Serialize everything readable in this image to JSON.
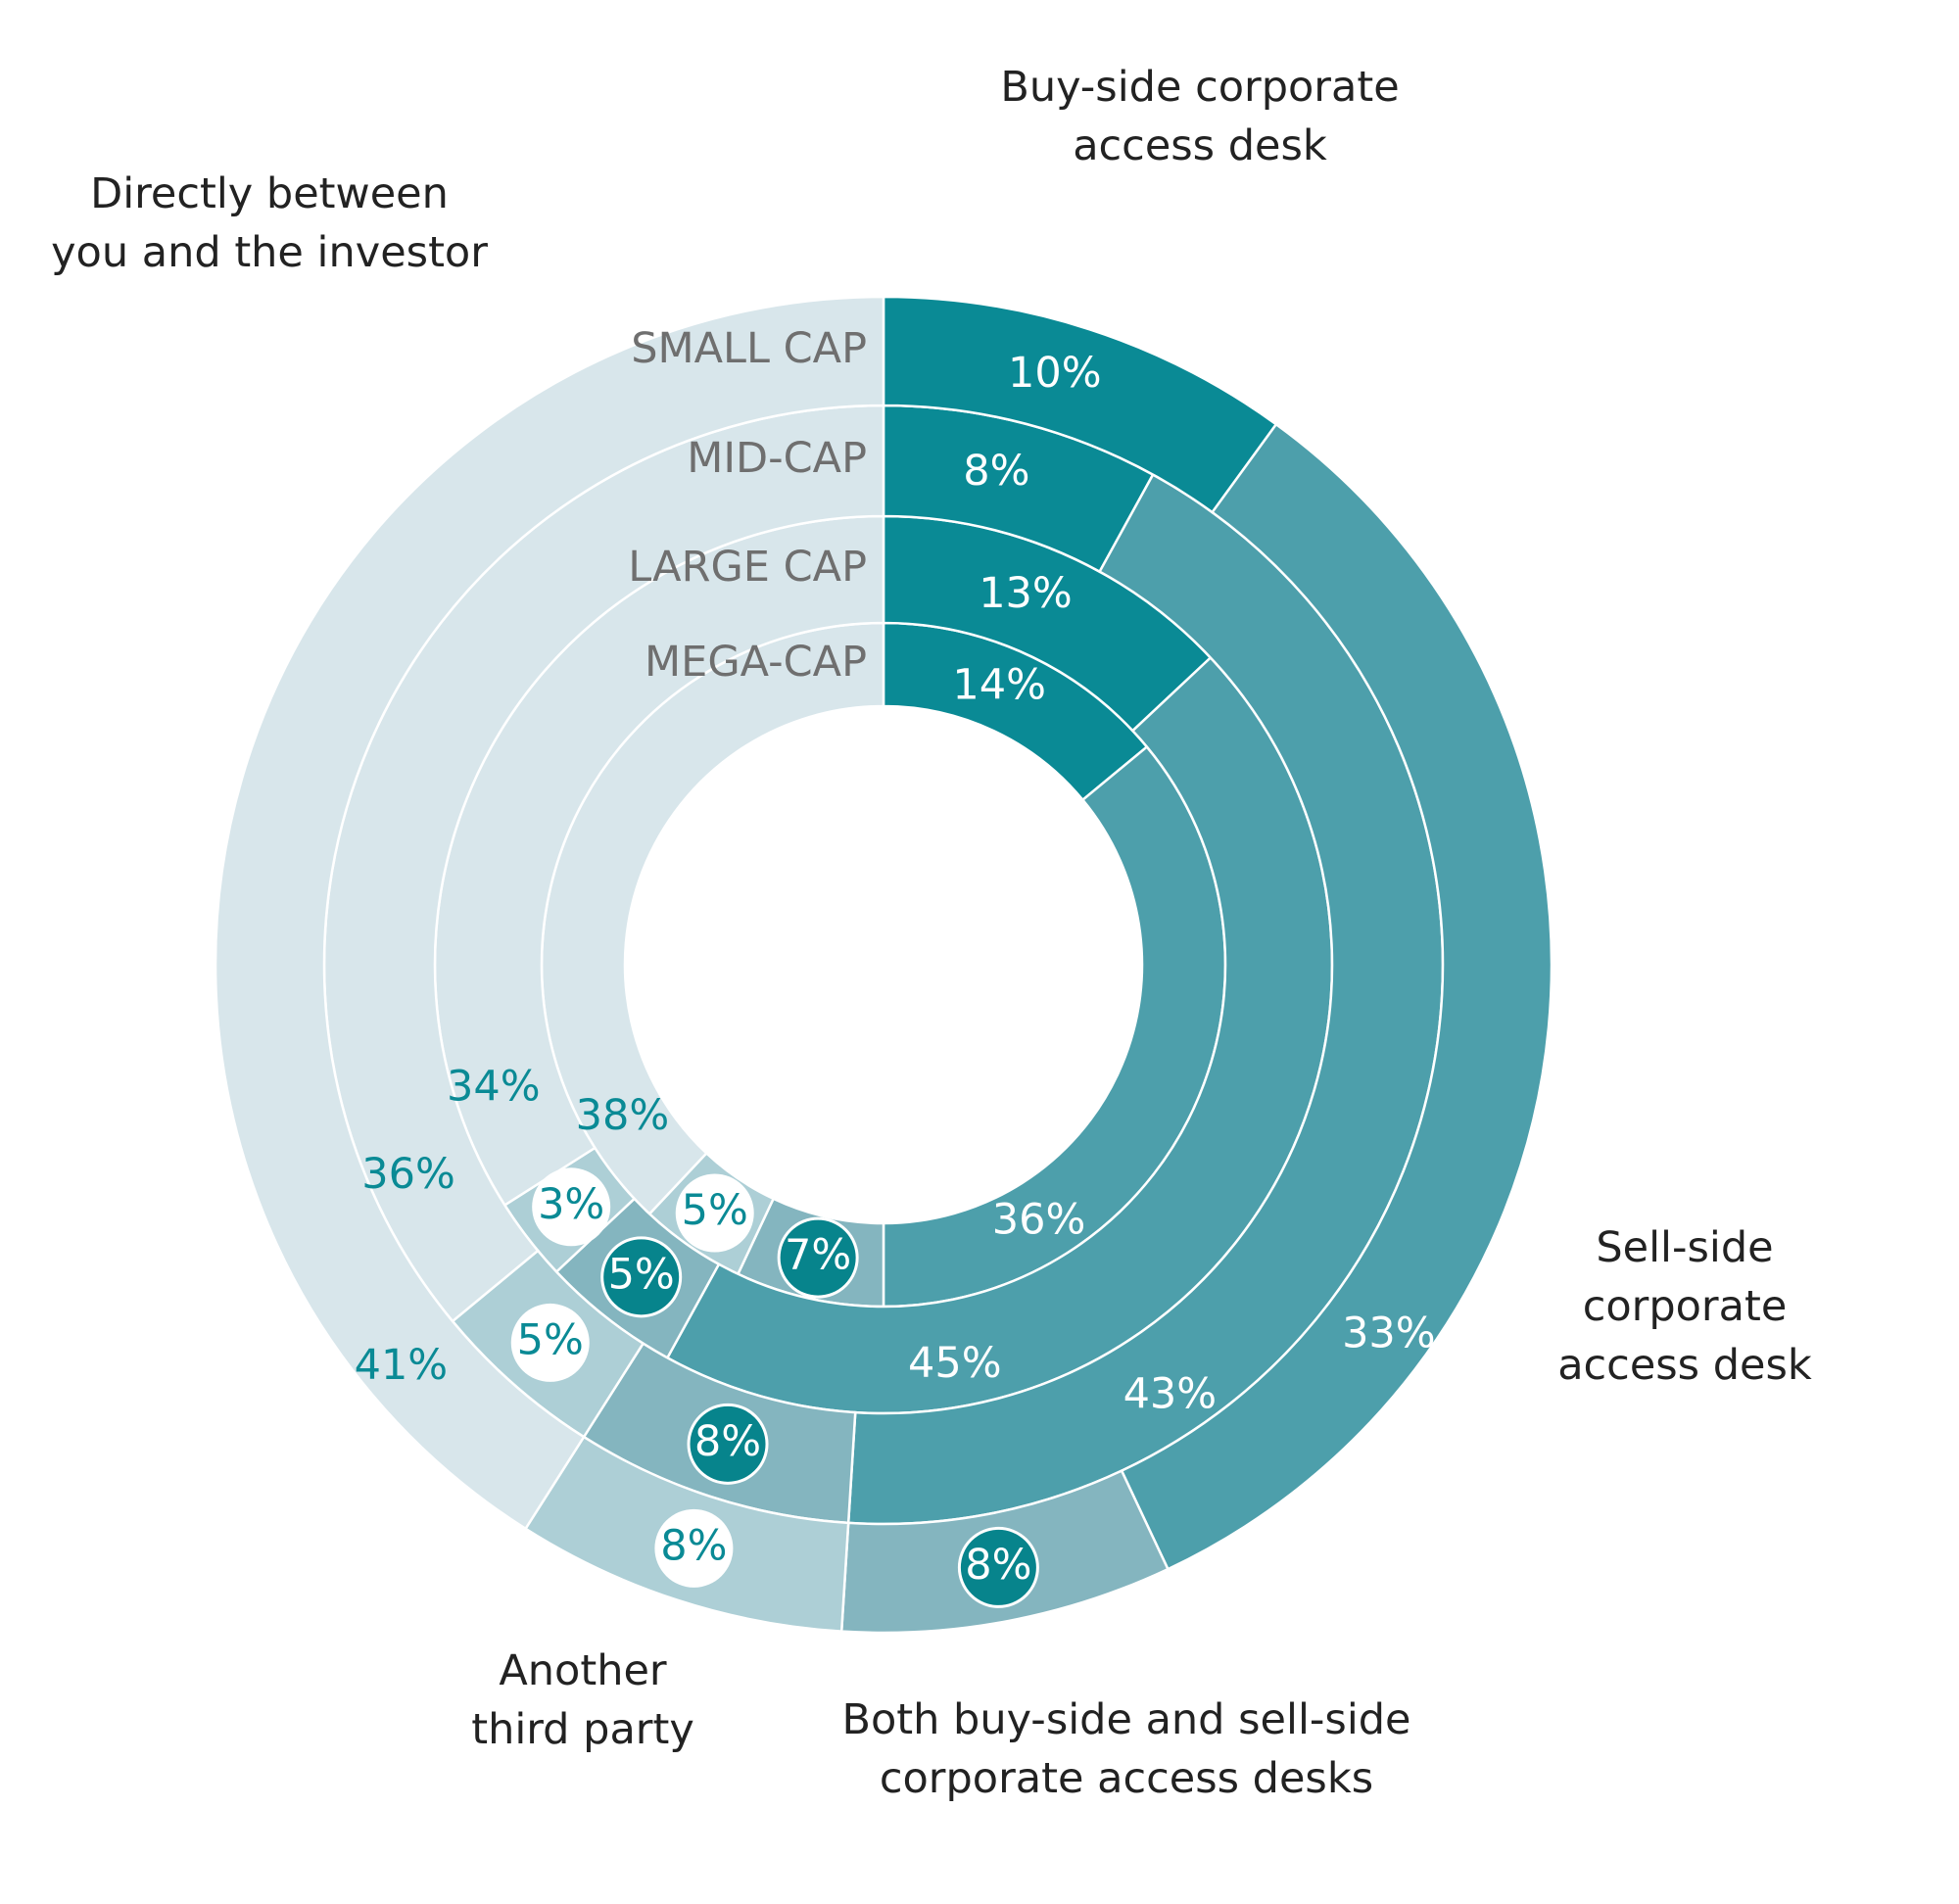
{
  "chart_data": {
    "type": "pie",
    "variant": "multi-ring donut",
    "categories": [
      "Buy-side corporate access desk",
      "Sell-side corporate access desk",
      "Both buy-side and sell-side corporate access desks",
      "Another third party",
      "Directly between you and the investor"
    ],
    "category_lines": [
      [
        "Buy-side corporate",
        "access desk"
      ],
      [
        "Sell-side",
        "corporate",
        "access desk"
      ],
      [
        "Both buy-side and sell-side",
        "corporate access desks"
      ],
      [
        "Another",
        "third party"
      ],
      [
        "Directly between",
        "you and the investor"
      ]
    ],
    "colors": [
      "#0a8a95",
      "#4d9fab",
      "#84b5bf",
      "#adcfd6",
      "#d8e6eb"
    ],
    "rings": [
      {
        "name": "SMALL CAP",
        "values": [
          10,
          33,
          8,
          8,
          41
        ],
        "labels": [
          "10%",
          "33%",
          "8%",
          "8%",
          "41%"
        ]
      },
      {
        "name": "MID-CAP",
        "values": [
          8,
          43,
          8,
          5,
          36
        ],
        "labels": [
          "8%",
          "43%",
          "8%",
          "5%",
          "36%"
        ]
      },
      {
        "name": "LARGE CAP",
        "values": [
          13,
          45,
          5,
          3,
          34
        ],
        "labels": [
          "13%",
          "45%",
          "5%",
          "3%",
          "34%"
        ]
      },
      {
        "name": "MEGA-CAP",
        "values": [
          14,
          36,
          7,
          5,
          38
        ],
        "labels": [
          "14%",
          "36%",
          "7%",
          "5%",
          "38%"
        ]
      }
    ],
    "direction": "clockwise from 12 o'clock"
  }
}
